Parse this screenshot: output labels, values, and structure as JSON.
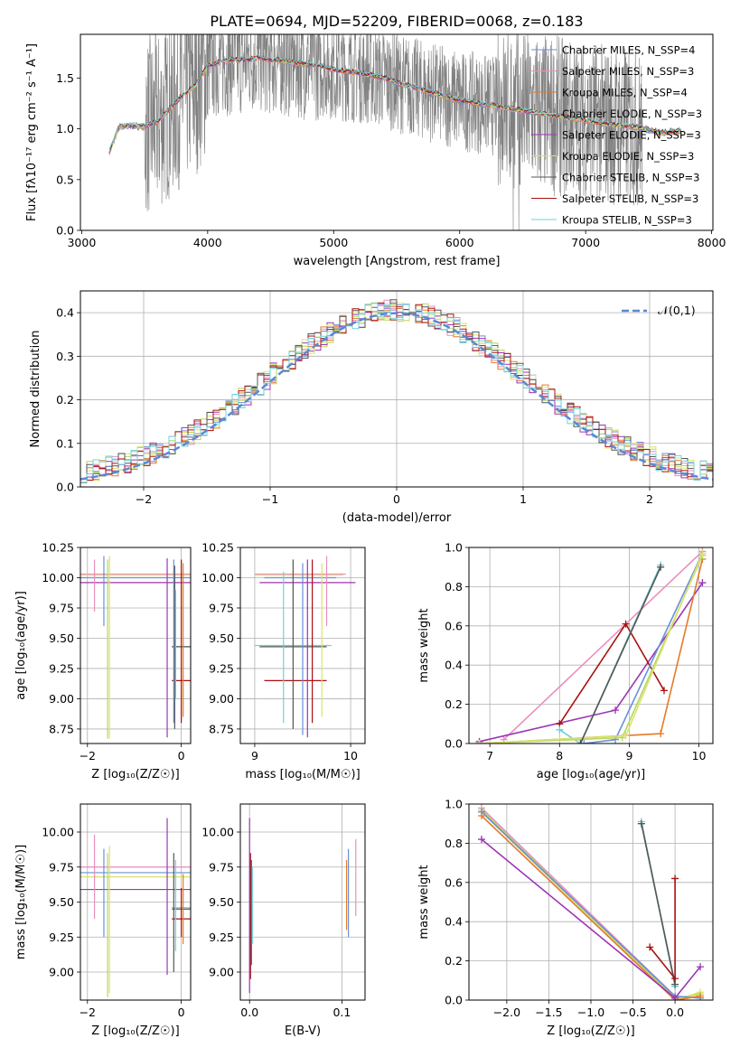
{
  "figure_title": "PLATE=0694, MJD=52209, FIBERID=0068, z=0.183",
  "chart_data": [
    {
      "id": "spectrum",
      "type": "line",
      "title": "PLATE=0694, MJD=52209, FIBERID=0068, z=0.183",
      "xlabel": "wavelength [Angstrom, rest frame]",
      "ylabel": "Flux [fλ10⁻¹⁷ erg cm⁻² s⁻¹ A⁻¹]",
      "xlim": [
        2990,
        8010
      ],
      "ylim": [
        0,
        1.93
      ],
      "xticks": [
        3000,
        4000,
        5000,
        6000,
        7000,
        8000
      ],
      "yticks": [
        0.0,
        0.5,
        1.0,
        1.5
      ],
      "grid": false,
      "legend_position": "top-right",
      "data_color": "#808080",
      "model_points": {
        "x": [
          3220,
          3300,
          3400,
          3500,
          3600,
          3700,
          3800,
          3900,
          4000,
          4100,
          4200,
          4300,
          4400,
          4500,
          4600,
          4700,
          4800,
          4900,
          5000,
          5200,
          5400,
          5600,
          5800,
          6000,
          6200,
          6400,
          6600,
          6800,
          7000,
          7200,
          7400,
          7600,
          7760
        ],
        "y": [
          0.78,
          1.02,
          1.03,
          1.02,
          1.07,
          1.2,
          1.33,
          1.42,
          1.62,
          1.66,
          1.68,
          1.68,
          1.7,
          1.68,
          1.67,
          1.65,
          1.63,
          1.62,
          1.58,
          1.55,
          1.5,
          1.42,
          1.35,
          1.28,
          1.24,
          1.2,
          1.16,
          1.12,
          1.08,
          1.04,
          1.02,
          0.96,
          0.98
        ]
      },
      "series": [
        {
          "name": "Chabrier MILES, N_SSP=4",
          "color": "#6a8fdc"
        },
        {
          "name": "Salpeter MILES, N_SSP=3",
          "color": "#e88fbf"
        },
        {
          "name": "Kroupa MILES, N_SSP=4",
          "color": "#e37b2b"
        },
        {
          "name": "Chabrier ELODIE, N_SSP=3",
          "color": "#b6d65b"
        },
        {
          "name": "Salpeter ELODIE, N_SSP=3",
          "color": "#9b35b5"
        },
        {
          "name": "Kroupa ELODIE, N_SSP=3",
          "color": "#d9e36b"
        },
        {
          "name": "Chabrier STELIB, N_SSP=3",
          "color": "#555555"
        },
        {
          "name": "Salpeter STELIB, N_SSP=3",
          "color": "#a81010"
        },
        {
          "name": "Kroupa STELIB, N_SSP=3",
          "color": "#6fd0d8"
        }
      ]
    },
    {
      "id": "residuals",
      "type": "bar",
      "xlabel": "(data-model)/error",
      "ylabel": "Normed distribution",
      "xlim": [
        -2.5,
        2.5
      ],
      "ylim": [
        0,
        0.45
      ],
      "xticks": [
        -2,
        -1,
        0,
        1,
        2
      ],
      "yticks": [
        0.0,
        0.1,
        0.2,
        0.3,
        0.4
      ],
      "grid": true,
      "legend_position": "top-right",
      "legend": "𝒩(0,1)",
      "gaussian_color": "#5b88d6",
      "bin_edges_start": -2.5,
      "bin_width": 0.1,
      "histogram": [
        0.05,
        0.03,
        0.04,
        0.06,
        0.06,
        0.07,
        0.08,
        0.09,
        0.08,
        0.07,
        0.09,
        0.1,
        0.1,
        0.12,
        0.14,
        0.15,
        0.18,
        0.2,
        0.21,
        0.23,
        0.26,
        0.25,
        0.27,
        0.26,
        0.28,
        0.3,
        0.31,
        0.33,
        0.35,
        0.34,
        0.36,
        0.35,
        0.37,
        0.38,
        0.39,
        0.4,
        0.38,
        0.35,
        0.37,
        0.36,
        0.38,
        0.37,
        0.36,
        0.35,
        0.33,
        0.32,
        0.3,
        0.3,
        0.27,
        0.26,
        0.24,
        0.23,
        0.22,
        0.2,
        0.18,
        0.17,
        0.15,
        0.13,
        0.14,
        0.12,
        0.12,
        0.1,
        0.1,
        0.08,
        0.09,
        0.07,
        0.06,
        0.06,
        0.05,
        0.05,
        0.05,
        0.04,
        0.04,
        0.05,
        0.04,
        0.03,
        0.04,
        0.03,
        0.04,
        0.03,
        0.04,
        0.03,
        0.04,
        0.03,
        0.03,
        0.03,
        0.04,
        0.03,
        0.03,
        0.03,
        0.03,
        0.03,
        0.03,
        0.03,
        0.03,
        0.03,
        0.03,
        0.04,
        0.04,
        0.04
      ]
    },
    {
      "id": "age-vs-Z",
      "type": "scatter",
      "xlabel": "Z [log₁₀(Z/Z☉)]",
      "ylabel": "age  [log₁₀(age/yr)]",
      "xlim": [
        -2.15,
        0.2
      ],
      "ylim": [
        8.63,
        10.25
      ],
      "xticks": [
        -2,
        0
      ],
      "yticks": [
        8.75,
        9.0,
        9.25,
        9.5,
        9.75,
        10.0,
        10.25
      ],
      "ytick_labels": [
        "8.75",
        "9.00",
        "9.25",
        "9.50",
        "9.75",
        "10.00",
        "10.25"
      ],
      "grid": true,
      "hlines": [
        {
          "y": 10.03,
          "x0": -2.15,
          "x1": 0.2,
          "color": "#e88fbf"
        },
        {
          "y": 10.02,
          "x0": -2.15,
          "x1": 0.2,
          "color": "#d9e36b"
        },
        {
          "y": 10.0,
          "x0": -2.15,
          "x1": 0.2,
          "color": "#6a8fdc"
        },
        {
          "y": 9.96,
          "x0": -2.15,
          "x1": 0.2,
          "color": "#9b35b5"
        },
        {
          "y": 9.43,
          "x0": -0.2,
          "x1": 0.2,
          "color": "#6fd0d8"
        },
        {
          "y": 9.43,
          "x0": -0.2,
          "x1": 0.2,
          "color": "#555555"
        },
        {
          "y": 9.15,
          "x0": -0.2,
          "x1": 0.2,
          "color": "#a81010"
        }
      ],
      "vlines": [
        {
          "x": -1.85,
          "y0": 9.72,
          "y1": 10.15,
          "color": "#e88fbf"
        },
        {
          "x": -1.65,
          "y0": 9.6,
          "y1": 10.18,
          "color": "#6a8fdc"
        },
        {
          "x": -1.57,
          "y0": 8.67,
          "y1": 10.15,
          "color": "#b6d65b"
        },
        {
          "x": -1.53,
          "y0": 8.67,
          "y1": 10.18,
          "color": "#d9e36b"
        },
        {
          "x": -0.3,
          "y0": 8.68,
          "y1": 10.16,
          "color": "#9b35b5"
        },
        {
          "x": -0.16,
          "y0": 8.8,
          "y1": 10.15,
          "color": "#6a8fdc"
        },
        {
          "x": -0.14,
          "y0": 8.75,
          "y1": 10.1,
          "color": "#555555"
        },
        {
          "x": -0.12,
          "y0": 9.0,
          "y1": 9.9,
          "color": "#6fd0d8"
        },
        {
          "x": 0.0,
          "y0": 8.8,
          "y1": 10.15,
          "color": "#a81010"
        },
        {
          "x": 0.04,
          "y0": 8.85,
          "y1": 10.12,
          "color": "#e37b2b"
        }
      ]
    },
    {
      "id": "age-vs-mass",
      "type": "scatter",
      "xlabel": "mass [log₁₀(M/M☉)]",
      "ylabel": "",
      "xlim": [
        8.85,
        10.15
      ],
      "ylim": [
        8.63,
        10.25
      ],
      "xticks": [
        9,
        10
      ],
      "yticks": [
        8.75,
        9.0,
        9.25,
        9.5,
        9.75,
        10.0,
        10.25
      ],
      "ytick_labels": [
        "8.75",
        "9.00",
        "9.25",
        "9.50",
        "9.75",
        "10.00",
        "10.25"
      ],
      "grid": true,
      "hlines": [
        {
          "y": 10.03,
          "x0": 9.0,
          "x1": 9.95,
          "color": "#e88fbf"
        },
        {
          "y": 10.02,
          "x0": 9.0,
          "x1": 9.92,
          "color": "#d9e36b"
        },
        {
          "y": 10.0,
          "x0": 9.1,
          "x1": 9.85,
          "color": "#6a8fdc"
        },
        {
          "y": 9.96,
          "x0": 9.05,
          "x1": 10.05,
          "color": "#9b35b5"
        },
        {
          "y": 9.44,
          "x0": 9.0,
          "x1": 9.8,
          "color": "#6fd0d8"
        },
        {
          "y": 9.43,
          "x0": 9.05,
          "x1": 9.75,
          "color": "#555555"
        },
        {
          "y": 9.15,
          "x0": 9.1,
          "x1": 9.75,
          "color": "#a81010"
        }
      ],
      "vlines": [
        {
          "x": 9.3,
          "y0": 8.8,
          "y1": 10.05,
          "color": "#6fd0d8"
        },
        {
          "x": 9.4,
          "y0": 8.75,
          "y1": 10.15,
          "color": "#555555"
        },
        {
          "x": 9.5,
          "y0": 8.7,
          "y1": 10.12,
          "color": "#6a8fdc"
        },
        {
          "x": 9.55,
          "y0": 8.68,
          "y1": 10.15,
          "color": "#9b35b5"
        },
        {
          "x": 9.6,
          "y0": 8.8,
          "y1": 10.15,
          "color": "#a81010"
        },
        {
          "x": 9.7,
          "y0": 8.85,
          "y1": 10.12,
          "color": "#d9e36b"
        },
        {
          "x": 9.75,
          "y0": 9.6,
          "y1": 10.18,
          "color": "#e88fbf"
        }
      ]
    },
    {
      "id": "weight-vs-age",
      "type": "line",
      "xlabel": "age  [log₁₀(age/yr)]",
      "ylabel": "mass weight",
      "xlim": [
        6.7,
        10.2
      ],
      "ylim": [
        0,
        1
      ],
      "xticks": [
        7,
        8,
        9,
        10
      ],
      "yticks": [
        0.0,
        0.2,
        0.4,
        0.6,
        0.8,
        1.0
      ],
      "grid": true,
      "series": [
        {
          "color": "#e88fbf",
          "x": [
            7.2,
            10.05
          ],
          "y": [
            0.02,
            0.98
          ]
        },
        {
          "color": "#9b35b5",
          "x": [
            6.85,
            8.8,
            10.05
          ],
          "y": [
            0.01,
            0.17,
            0.82
          ]
        },
        {
          "color": "#a81010",
          "x": [
            8.0,
            8.95,
            9.5
          ],
          "y": [
            0.1,
            0.61,
            0.27
          ]
        },
        {
          "color": "#6fd0d8",
          "x": [
            8.0,
            8.3,
            9.45
          ],
          "y": [
            0.07,
            0.0,
            0.91
          ]
        },
        {
          "color": "#e37b2b",
          "x": [
            6.85,
            9.45,
            10.05
          ],
          "y": [
            0.0,
            0.05,
            0.94
          ]
        },
        {
          "color": "#6a8fdc",
          "x": [
            8.35,
            8.8,
            10.05
          ],
          "y": [
            0.0,
            0.02,
            0.97
          ]
        },
        {
          "color": "#b6d65b",
          "x": [
            6.85,
            8.9,
            10.05
          ],
          "y": [
            0.0,
            0.03,
            0.96
          ]
        },
        {
          "color": "#d9e36b",
          "x": [
            6.85,
            8.95,
            10.05
          ],
          "y": [
            0.0,
            0.04,
            0.97
          ]
        },
        {
          "color": "#555555",
          "x": [
            8.3,
            9.45
          ],
          "y": [
            0.0,
            0.9
          ]
        }
      ]
    },
    {
      "id": "mass-vs-Z",
      "type": "scatter",
      "xlabel": "Z [log₁₀(Z/Z☉)]",
      "ylabel": "mass [log₁₀(M/M☉)]",
      "xlim": [
        -2.15,
        0.2
      ],
      "ylim": [
        8.8,
        10.2
      ],
      "xticks": [
        -2,
        0
      ],
      "yticks": [
        9.0,
        9.25,
        9.5,
        9.75,
        10.0
      ],
      "ytick_labels": [
        "9.00",
        "9.25",
        "9.50",
        "9.75",
        "10.00"
      ],
      "grid": true,
      "hlines": [
        {
          "y": 9.75,
          "x0": -2.15,
          "x1": 0.2,
          "color": "#e88fbf"
        },
        {
          "y": 9.71,
          "x0": -2.15,
          "x1": 0.2,
          "color": "#6a8fdc"
        },
        {
          "y": 9.68,
          "x0": -2.15,
          "x1": 0.2,
          "color": "#d9e36b"
        },
        {
          "y": 9.59,
          "x0": -2.15,
          "x1": 0.2,
          "color": "#9b35b5"
        },
        {
          "y": 9.46,
          "x0": -0.2,
          "x1": 0.2,
          "color": "#6fd0d8"
        },
        {
          "y": 9.45,
          "x0": -0.2,
          "x1": 0.2,
          "color": "#555555"
        },
        {
          "y": 9.38,
          "x0": -0.2,
          "x1": 0.2,
          "color": "#a81010"
        }
      ],
      "vlines": [
        {
          "x": -1.85,
          "y0": 9.38,
          "y1": 9.98,
          "color": "#e88fbf"
        },
        {
          "x": -1.65,
          "y0": 9.25,
          "y1": 9.88,
          "color": "#6a8fdc"
        },
        {
          "x": -1.57,
          "y0": 8.82,
          "y1": 9.85,
          "color": "#b6d65b"
        },
        {
          "x": -1.53,
          "y0": 8.85,
          "y1": 9.9,
          "color": "#d9e36b"
        },
        {
          "x": -0.3,
          "y0": 8.98,
          "y1": 10.1,
          "color": "#9b35b5"
        },
        {
          "x": -0.16,
          "y0": 9.0,
          "y1": 9.85,
          "color": "#555555"
        },
        {
          "x": -0.12,
          "y0": 9.15,
          "y1": 9.8,
          "color": "#6fd0d8"
        },
        {
          "x": 0.0,
          "y0": 9.25,
          "y1": 9.6,
          "color": "#a81010"
        },
        {
          "x": 0.04,
          "y0": 9.2,
          "y1": 9.7,
          "color": "#e37b2b"
        }
      ]
    },
    {
      "id": "mass-vs-ebv",
      "type": "scatter",
      "xlabel": "E(B-V)",
      "ylabel": "",
      "xlim": [
        -0.01,
        0.125
      ],
      "ylim": [
        8.8,
        10.2
      ],
      "xticks": [
        0.0,
        0.1
      ],
      "xtick_labels": [
        "0.0",
        "0.1"
      ],
      "yticks": [
        9.0,
        9.25,
        9.5,
        9.75,
        10.0
      ],
      "ytick_labels": [
        "9.00",
        "9.25",
        "9.50",
        "9.75",
        "10.00"
      ],
      "grid": true,
      "vlines": [
        {
          "x": 0.0,
          "y0": 8.85,
          "y1": 10.1,
          "color": "#9b35b5"
        },
        {
          "x": 0.001,
          "y0": 8.95,
          "y1": 9.85,
          "color": "#a81010"
        },
        {
          "x": 0.002,
          "y0": 9.05,
          "y1": 9.8,
          "color": "#555555"
        },
        {
          "x": 0.003,
          "y0": 9.2,
          "y1": 9.75,
          "color": "#6fd0d8"
        },
        {
          "x": 0.105,
          "y0": 9.3,
          "y1": 9.8,
          "color": "#e37b2b"
        },
        {
          "x": 0.107,
          "y0": 9.25,
          "y1": 9.88,
          "color": "#6a8fdc"
        },
        {
          "x": 0.115,
          "y0": 9.4,
          "y1": 9.95,
          "color": "#e88fbf"
        }
      ]
    },
    {
      "id": "weight-vs-Z",
      "type": "line",
      "xlabel": "Z [log₁₀(Z/Z☉)]",
      "ylabel": "mass weight",
      "xlim": [
        -2.45,
        0.45
      ],
      "ylim": [
        0,
        1
      ],
      "xticks": [
        -2.0,
        -1.5,
        -1.0,
        -0.5,
        0.0
      ],
      "xtick_labels": [
        "−2.0",
        "−1.5",
        "−1.0",
        "−0.5",
        "0.0"
      ],
      "yticks": [
        0.0,
        0.2,
        0.4,
        0.6,
        0.8,
        1.0
      ],
      "grid": true,
      "series": [
        {
          "color": "#e88fbf",
          "x": [
            -2.3,
            0.0
          ],
          "y": [
            0.98,
            0.02
          ]
        },
        {
          "color": "#b6d65b",
          "x": [
            -2.3,
            0.0,
            0.3
          ],
          "y": [
            0.97,
            0.01,
            0.03
          ]
        },
        {
          "color": "#d9e36b",
          "x": [
            -2.3,
            0.0,
            0.3
          ],
          "y": [
            0.96,
            0.0,
            0.04
          ]
        },
        {
          "color": "#6a8fdc",
          "x": [
            -2.3,
            0.0,
            0.3
          ],
          "y": [
            0.96,
            0.02,
            0.01
          ]
        },
        {
          "color": "#e37b2b",
          "x": [
            -2.3,
            0.0,
            0.3
          ],
          "y": [
            0.94,
            0.0,
            0.02
          ]
        },
        {
          "color": "#9b35b5",
          "x": [
            -2.3,
            0.0,
            0.3
          ],
          "y": [
            0.82,
            0.01,
            0.17
          ]
        },
        {
          "color": "#6fd0d8",
          "x": [
            -0.4,
            0.0
          ],
          "y": [
            0.91,
            0.07
          ]
        },
        {
          "color": "#555555",
          "x": [
            -0.4,
            0.0
          ],
          "y": [
            0.9,
            0.08
          ]
        },
        {
          "color": "#a81010",
          "x": [
            -0.3,
            0.0,
            0.0
          ],
          "y": [
            0.27,
            0.11,
            0.62
          ]
        }
      ]
    }
  ]
}
